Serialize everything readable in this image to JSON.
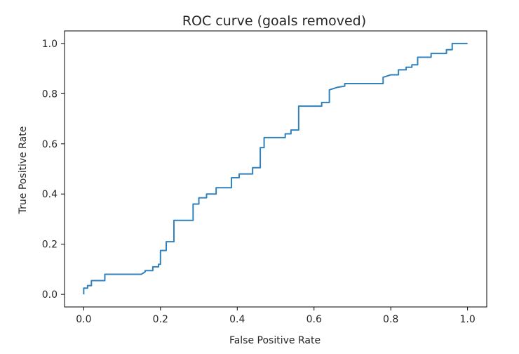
{
  "chart_data": {
    "type": "line",
    "title": "ROC curve (goals removed)",
    "xlabel": "False Positive Rate",
    "ylabel": "True Positive Rate",
    "xlim": [
      -0.05,
      1.05
    ],
    "ylim": [
      -0.05,
      1.05
    ],
    "xticks": [
      "0.0",
      "0.2",
      "0.4",
      "0.6",
      "0.8",
      "1.0"
    ],
    "yticks": [
      "0.0",
      "0.2",
      "0.4",
      "0.6",
      "0.8",
      "1.0"
    ],
    "grid": false,
    "line_color": "#3181bd",
    "series": [
      {
        "x": [
          0.0,
          0.0,
          0.01,
          0.01,
          0.02,
          0.02,
          0.055,
          0.055,
          0.15,
          0.16,
          0.16,
          0.18,
          0.18,
          0.195,
          0.195,
          0.2,
          0.2,
          0.215,
          0.215,
          0.235,
          0.235,
          0.285,
          0.285,
          0.3,
          0.3,
          0.32,
          0.32,
          0.345,
          0.345,
          0.385,
          0.385,
          0.405,
          0.405,
          0.44,
          0.44,
          0.46,
          0.46,
          0.47,
          0.47,
          0.525,
          0.525,
          0.54,
          0.54,
          0.56,
          0.56,
          0.62,
          0.62,
          0.64,
          0.64,
          0.66,
          0.68,
          0.68,
          0.78,
          0.78,
          0.8,
          0.82,
          0.82,
          0.84,
          0.84,
          0.855,
          0.855,
          0.87,
          0.87,
          0.905,
          0.905,
          0.945,
          0.945,
          0.96,
          0.96,
          1.0
        ],
        "y": [
          0.0,
          0.025,
          0.025,
          0.035,
          0.035,
          0.055,
          0.055,
          0.08,
          0.08,
          0.09,
          0.095,
          0.095,
          0.11,
          0.11,
          0.12,
          0.12,
          0.175,
          0.175,
          0.21,
          0.21,
          0.295,
          0.295,
          0.36,
          0.36,
          0.385,
          0.385,
          0.4,
          0.4,
          0.425,
          0.425,
          0.465,
          0.465,
          0.48,
          0.48,
          0.505,
          0.505,
          0.585,
          0.585,
          0.625,
          0.625,
          0.64,
          0.64,
          0.655,
          0.655,
          0.75,
          0.75,
          0.765,
          0.765,
          0.815,
          0.825,
          0.83,
          0.84,
          0.84,
          0.865,
          0.875,
          0.875,
          0.895,
          0.895,
          0.905,
          0.905,
          0.915,
          0.915,
          0.945,
          0.945,
          0.96,
          0.96,
          0.975,
          0.975,
          1.0,
          1.0
        ]
      }
    ]
  }
}
